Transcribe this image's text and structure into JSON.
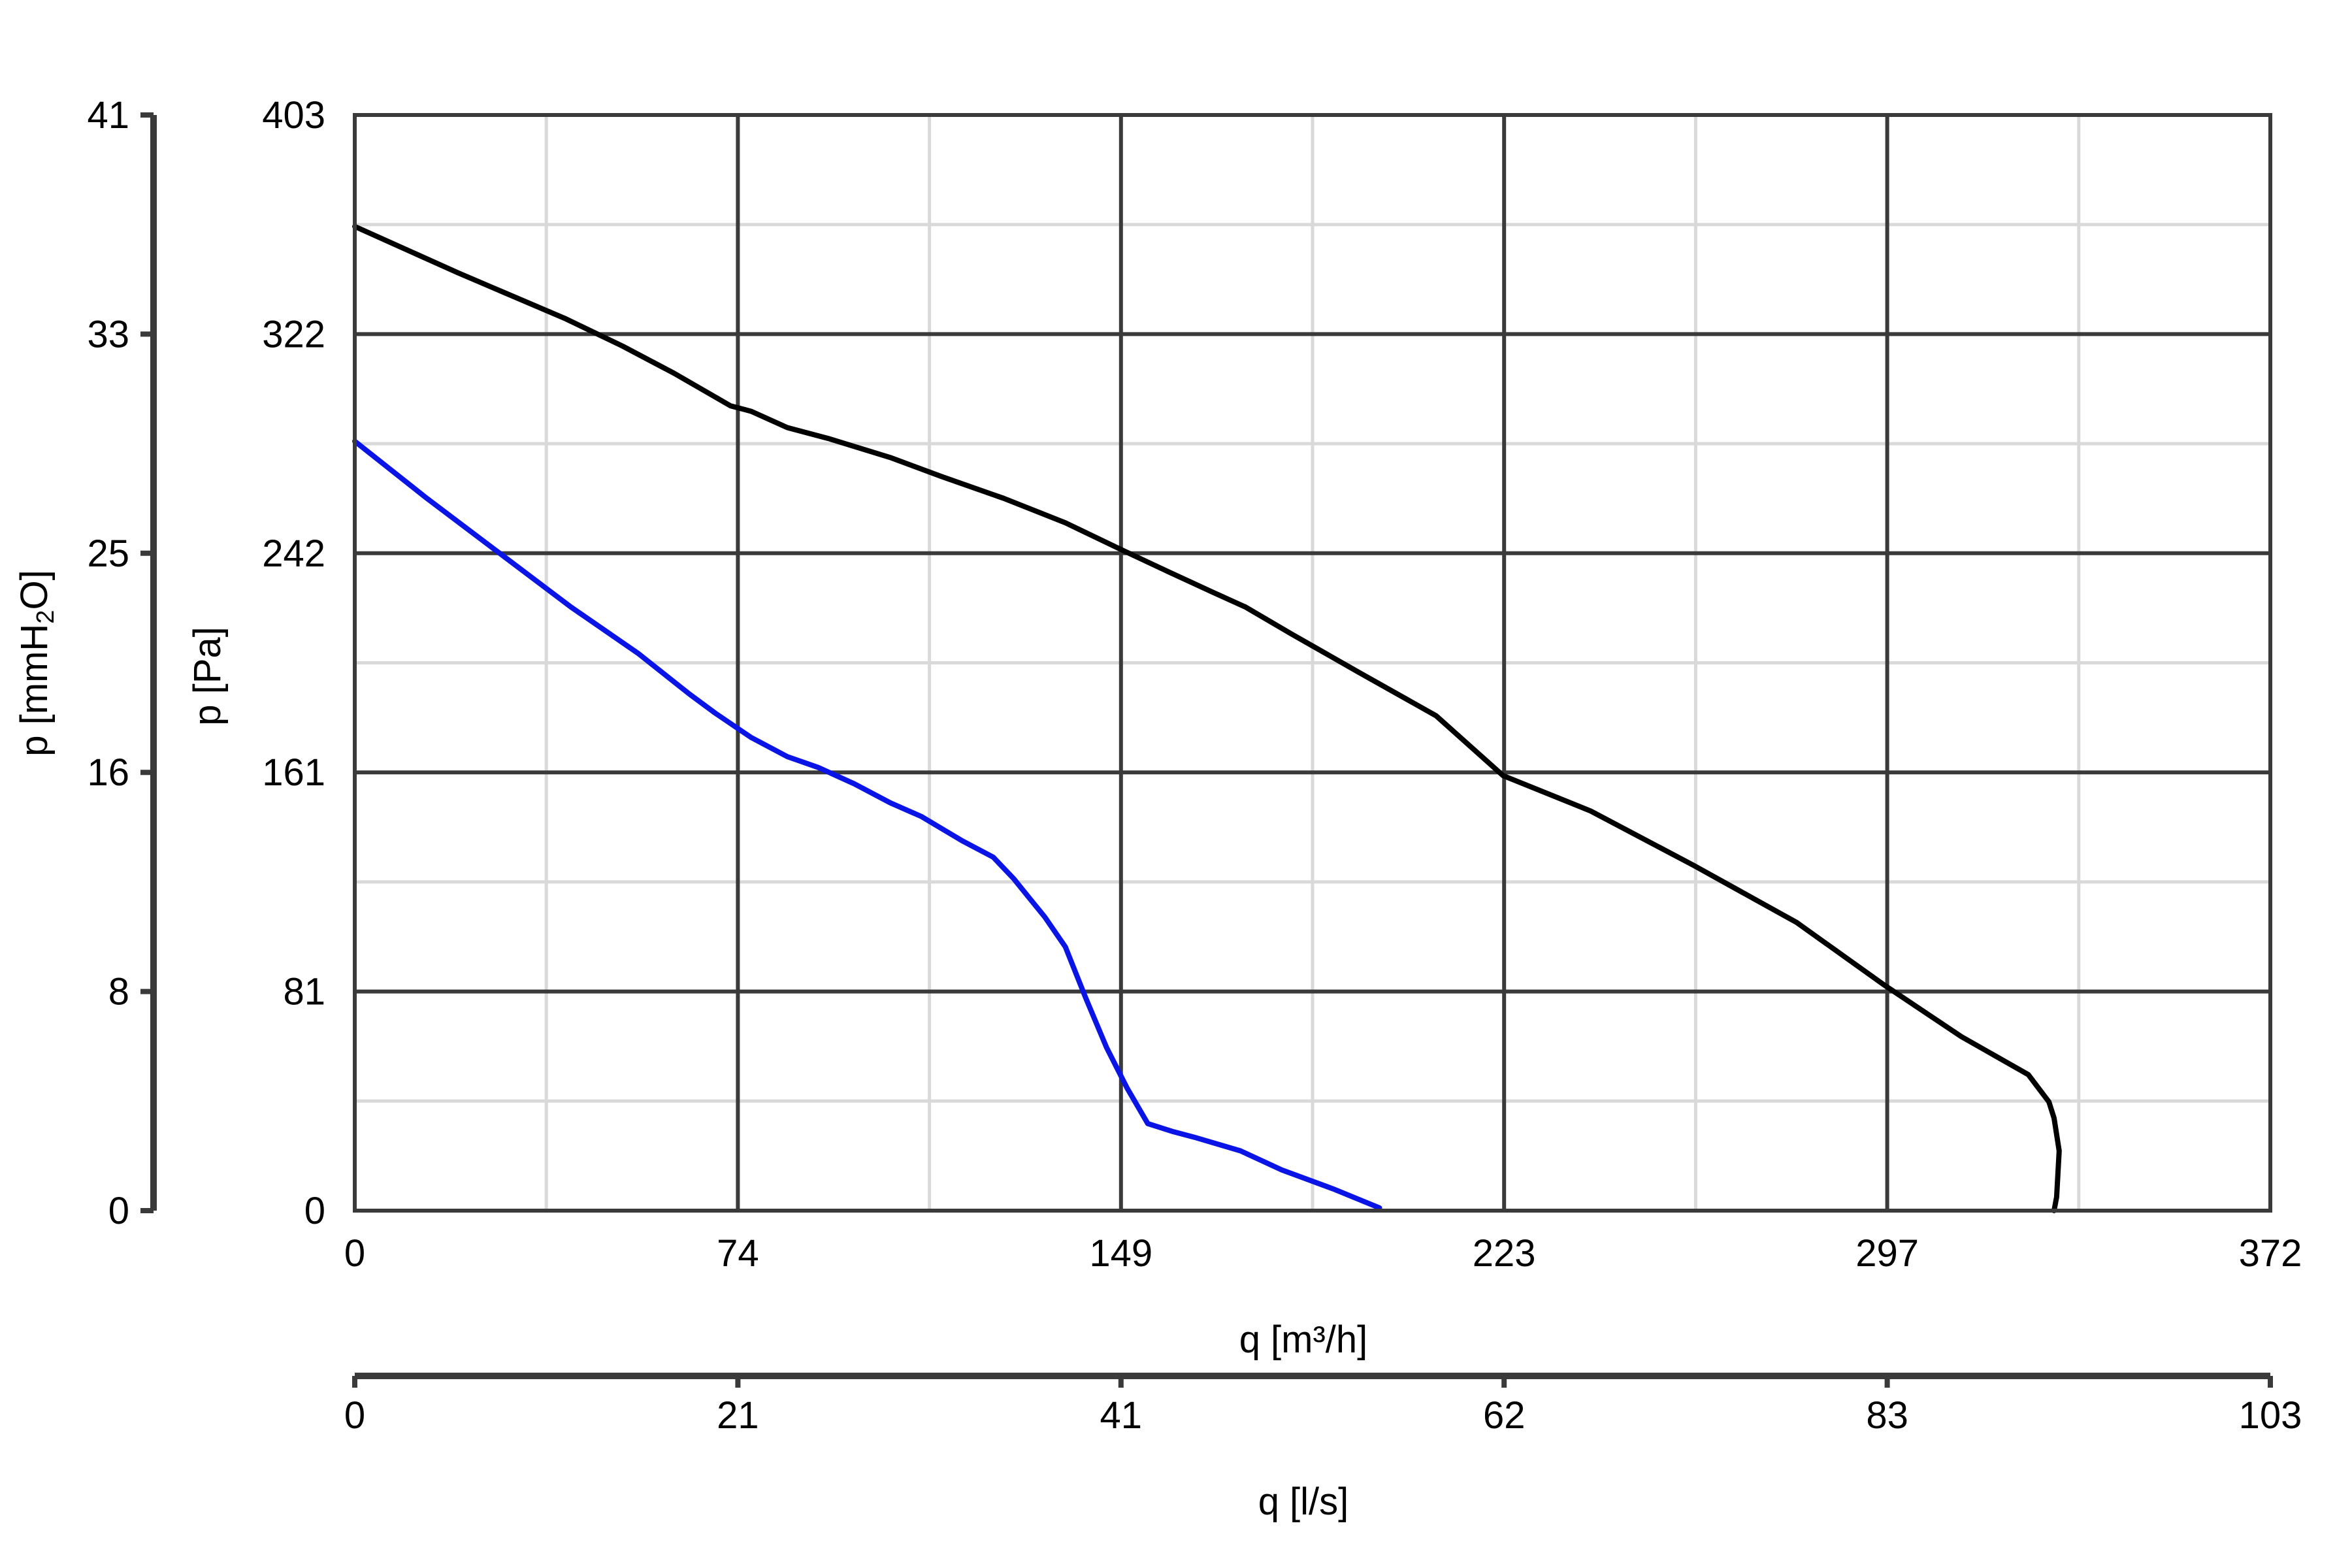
{
  "chart_data": {
    "type": "line",
    "x_primary": {
      "label": "q [m³/h]",
      "range": [
        0,
        372
      ],
      "ticks": [
        "0",
        "74",
        "149",
        "223",
        "297",
        "372"
      ]
    },
    "x_secondary": {
      "label": "q [l/s]",
      "ticks": [
        "0",
        "21",
        "41",
        "62",
        "83",
        "103"
      ]
    },
    "y_primary": {
      "label": "p [Pa]",
      "range": [
        0,
        403
      ],
      "ticks": [
        "0",
        "81",
        "161",
        "242",
        "322",
        "403"
      ]
    },
    "y_secondary": {
      "label_main": "p [mmH",
      "label_sub": "2",
      "label_end": "O]",
      "ticks": [
        "0",
        "8",
        "16",
        "25",
        "33",
        "41"
      ]
    },
    "grid": true,
    "series": [
      {
        "color": "#000000",
        "points": [
          [
            0,
            362
          ],
          [
            20,
            345
          ],
          [
            41,
            328
          ],
          [
            52,
            318
          ],
          [
            62,
            308
          ],
          [
            73,
            296
          ],
          [
            77,
            294
          ],
          [
            84,
            288
          ],
          [
            92,
            284
          ],
          [
            104,
            277
          ],
          [
            114,
            270
          ],
          [
            126,
            262
          ],
          [
            138,
            253
          ],
          [
            149,
            243
          ],
          [
            158,
            235
          ],
          [
            166,
            228
          ],
          [
            173,
            222
          ],
          [
            182,
            212
          ],
          [
            195,
            198
          ],
          [
            210,
            182
          ],
          [
            223,
            160
          ],
          [
            240,
            147
          ],
          [
            260,
            127
          ],
          [
            280,
            106
          ],
          [
            297,
            83
          ],
          [
            312,
            64
          ],
          [
            325,
            50
          ],
          [
            327,
            45
          ],
          [
            329,
            40
          ],
          [
            330,
            34
          ],
          [
            331,
            22
          ],
          [
            330.5,
            5
          ],
          [
            330,
            0
          ]
        ]
      },
      {
        "color": "#0a14e6",
        "points": [
          [
            0,
            283
          ],
          [
            14,
            262
          ],
          [
            28,
            242
          ],
          [
            42,
            222
          ],
          [
            55,
            205
          ],
          [
            65,
            190
          ],
          [
            70,
            183
          ],
          [
            77,
            174
          ],
          [
            84,
            167
          ],
          [
            90,
            163
          ],
          [
            97,
            157
          ],
          [
            104,
            150
          ],
          [
            110,
            145
          ],
          [
            118,
            136
          ],
          [
            124,
            130
          ],
          [
            128,
            122
          ],
          [
            131,
            115
          ],
          [
            134,
            108
          ],
          [
            138,
            97
          ],
          [
            142,
            78
          ],
          [
            146,
            60
          ],
          [
            150,
            45
          ],
          [
            154,
            32
          ],
          [
            159,
            29
          ],
          [
            163,
            27
          ],
          [
            172,
            22
          ],
          [
            180,
            15
          ],
          [
            190,
            8
          ],
          [
            199,
            1
          ]
        ]
      }
    ]
  }
}
